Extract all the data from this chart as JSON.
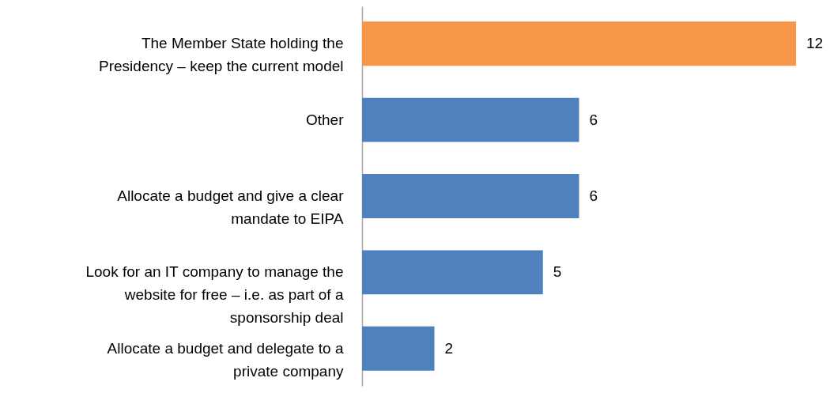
{
  "chart_data": {
    "type": "bar",
    "orientation": "horizontal",
    "categories": [
      "The Member State holding the Presidency – keep the current model",
      "Other",
      "Allocate a budget and give a clear mandate to EIPA",
      "Look for an IT company to manage the website for free – i.e. as part of a sponsorship deal",
      "Allocate a budget and delegate to a private company"
    ],
    "values": [
      12,
      6,
      6,
      5,
      2
    ],
    "colors": [
      "#f79646",
      "#4f81bd",
      "#4f81bd",
      "#4f81bd",
      "#4f81bd"
    ],
    "data_labels": true,
    "tick_labels": "y"
  }
}
